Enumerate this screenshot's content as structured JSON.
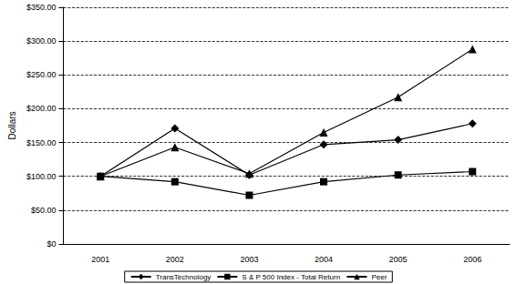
{
  "chart_data": {
    "type": "line",
    "y_label": "Dollars",
    "categories": [
      "2001",
      "2002",
      "2003",
      "2004",
      "2005",
      "2006"
    ],
    "series": [
      {
        "name": "TransTechnology",
        "color": "#000000",
        "marker": "diamond",
        "line_style": "solid",
        "values": [
          100,
          171,
          102,
          147,
          154,
          178
        ]
      },
      {
        "name": "S & P 500 Index - Total Return",
        "color": "#000000",
        "marker": "square",
        "line_style": "solid",
        "values": [
          100,
          92,
          72,
          92,
          102,
          107
        ]
      },
      {
        "name": "Peer",
        "color": "#000000",
        "marker": "triangle",
        "line_style": "solid",
        "values": [
          100,
          143,
          104,
          165,
          217,
          288
        ]
      }
    ],
    "ylim": [
      0,
      350
    ],
    "yticks": [
      {
        "value": 0,
        "label": "$0"
      },
      {
        "value": 50,
        "label": "$50.00"
      },
      {
        "value": 100,
        "label": "$100.00"
      },
      {
        "value": 150,
        "label": "$150.00"
      },
      {
        "value": 200,
        "label": "$200.00"
      },
      {
        "value": 250,
        "label": "$250.00"
      },
      {
        "value": 300,
        "label": "$300.00"
      },
      {
        "value": 350,
        "label": "$350.00"
      }
    ],
    "grid": true,
    "legend": "bottom"
  }
}
